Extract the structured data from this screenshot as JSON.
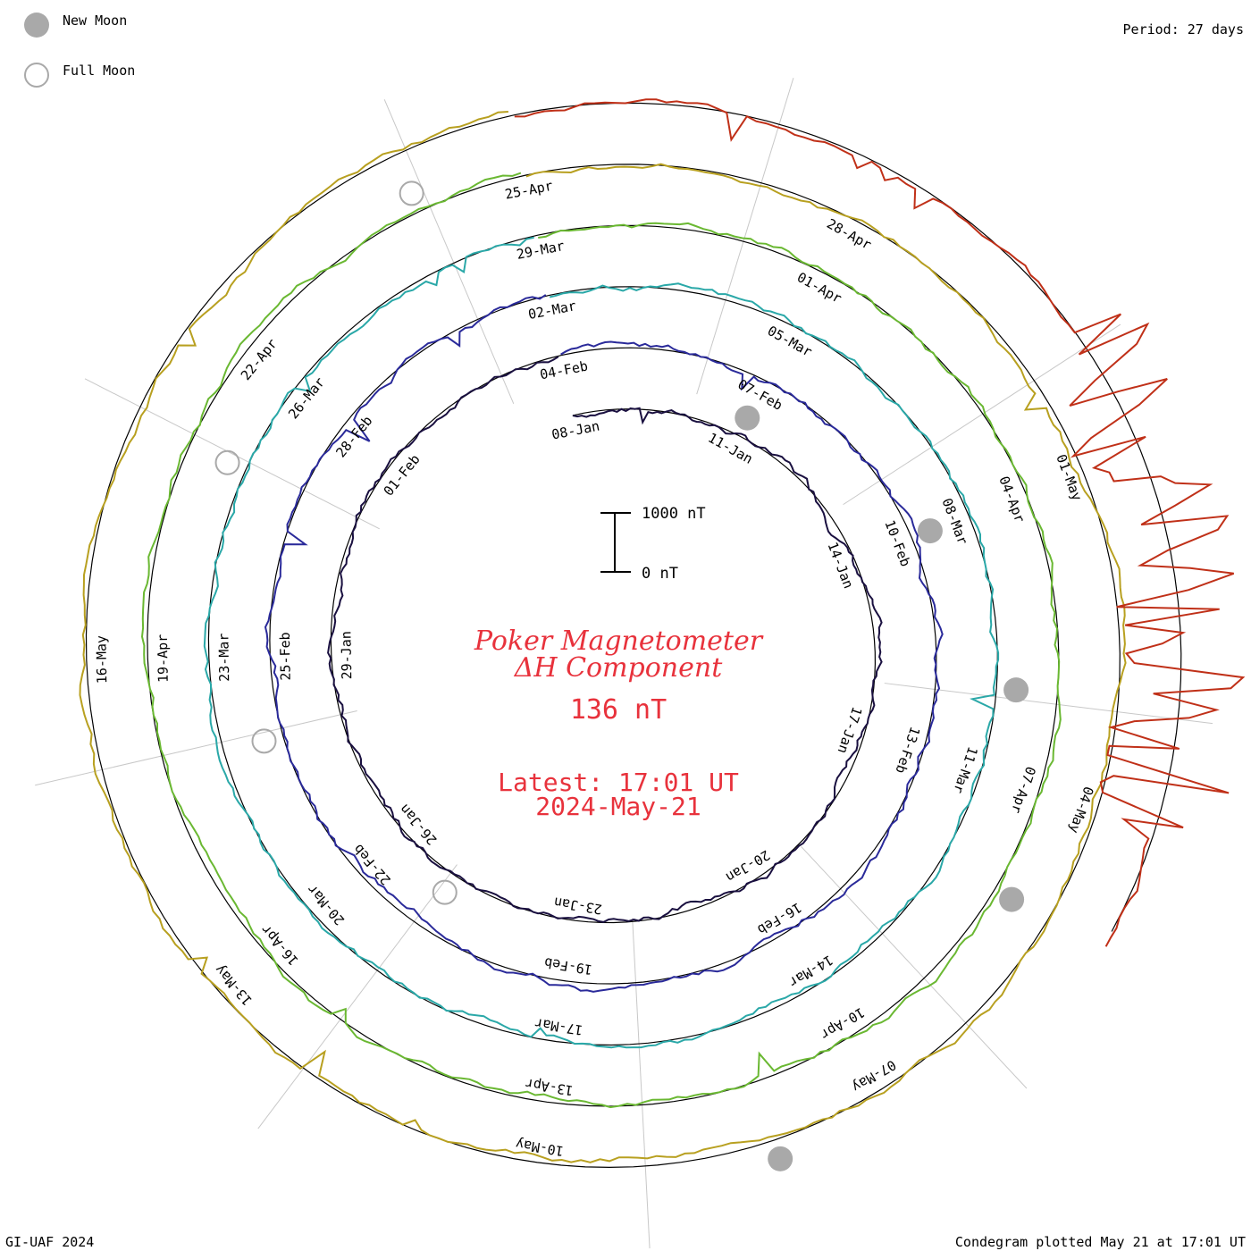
{
  "legend": {
    "new_moon_label": "New Moon",
    "full_moon_label": "Full Moon",
    "new_moon_color": "#a9a9a9",
    "full_moon_color": "#a9a9a9"
  },
  "header": {
    "period": "Period: 27 days"
  },
  "footer": {
    "left": "GI-UAF 2024",
    "right": "Condegram plotted May 21 at 17:01 UT"
  },
  "scale_bar": {
    "top_label": "1000 nT",
    "bottom_label": "0 nT"
  },
  "center": {
    "title_line1": "Poker Magnetometer",
    "title_line2": "ΔH Component",
    "value": "136 nT",
    "latest_line1": "Latest: 17:01 UT",
    "latest_line2": "2024-May-21"
  },
  "chart_data": {
    "type": "line",
    "title": "Poker Magnetometer ΔH Component",
    "period_days": 27,
    "scale_nT": [
      0,
      1000
    ],
    "current_value_nT": 136,
    "grid": true,
    "turns": [
      {
        "name": "",
        "color": "#1a1040",
        "date_labels": [
          "08-Jan",
          "11-Jan",
          "14-Jan",
          "17-Jan",
          "20-Jan",
          "23-Jan",
          "26-Jan",
          "29-Jan",
          "01-Feb"
        ]
      },
      {
        "name": "",
        "color": "#2a2a9a",
        "date_labels": [
          "04-Feb",
          "07-Feb",
          "10-Feb",
          "13-Feb",
          "16-Feb",
          "19-Feb",
          "22-Feb",
          "25-Feb",
          "28-Feb"
        ]
      },
      {
        "name": "",
        "color": "#2aa8a8",
        "date_labels": [
          "02-Mar",
          "05-Mar",
          "08-Mar",
          "11-Mar",
          "14-Mar",
          "17-Mar",
          "20-Mar",
          "23-Mar",
          "26-Mar"
        ]
      },
      {
        "name": "",
        "color": "#6ab832",
        "date_labels": [
          "29-Mar",
          "01-Apr",
          "04-Apr",
          "07-Apr",
          "10-Apr",
          "13-Apr",
          "16-Apr",
          "19-Apr",
          "22-Apr"
        ]
      },
      {
        "name": "",
        "color": "#b8a020",
        "date_labels": [
          "25-Apr",
          "28-Apr",
          "01-May",
          "04-May",
          "07-May",
          "10-May",
          "13-May",
          "16-May"
        ]
      },
      {
        "name": "",
        "color": "#c03018",
        "date_labels": []
      }
    ],
    "new_moons": [
      "11-Jan",
      "10-Feb",
      "10-Mar",
      "08-Apr",
      "08-May"
    ],
    "full_moons": [
      "25-Jan",
      "24-Feb",
      "25-Mar",
      "24-Apr"
    ]
  }
}
